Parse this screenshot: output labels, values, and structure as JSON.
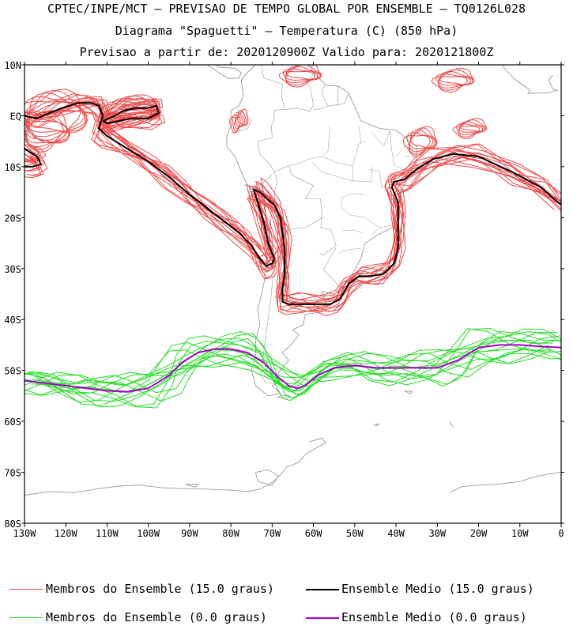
{
  "title": {
    "line1": "CPTEC/INPE/MCT — PREVISAO DE TEMPO GLOBAL POR ENSEMBLE — TQ0126L028",
    "line2": "Diagrama \"Spaguetti\" — Temperatura (C) (850 hPa)",
    "line3": "Previsao a partir de: 2020120900Z  Valido para: 2020121800Z"
  },
  "colors": {
    "members_15": "#f04848",
    "mean_15": "#000000",
    "members_0": "#22dd22",
    "mean_0": "#aa00cc",
    "coast": "#999999"
  },
  "chart_data": {
    "type": "line",
    "title": "Diagrama \"Spaguetti\" — Temperatura (C) (850 hPa)",
    "xlim": [
      -130,
      0
    ],
    "ylim": [
      -80,
      10
    ],
    "x_ticks": [
      -130,
      -120,
      -110,
      -100,
      -90,
      -80,
      -70,
      -60,
      -50,
      -40,
      -30,
      -20,
      -10,
      0
    ],
    "x_tick_labels": [
      "130W",
      "120W",
      "110W",
      "100W",
      "90W",
      "80W",
      "70W",
      "60W",
      "50W",
      "40W",
      "30W",
      "20W",
      "10W",
      "0"
    ],
    "y_ticks": [
      10,
      0,
      -10,
      -20,
      -30,
      -40,
      -50,
      -60,
      -70,
      -80
    ],
    "y_tick_labels": [
      "10N",
      "EQ",
      "10S",
      "20S",
      "30S",
      "40S",
      "50S",
      "60S",
      "70S",
      "80S"
    ],
    "series": [
      {
        "name": "Ensemble Medio (15.0 graus)",
        "role": "mean_15",
        "segments": [
          [
            [
              -130,
              0
            ],
            [
              -127,
              -0.5
            ],
            [
              -124,
              0.5
            ],
            [
              -121,
              1.5
            ],
            [
              -117,
              2.5
            ],
            [
              -114,
              2.5
            ],
            [
              -112,
              2
            ],
            [
              -111,
              0
            ],
            [
              -112,
              -2.5
            ],
            [
              -110,
              -4
            ],
            [
              -106,
              -6
            ],
            [
              -100,
              -9
            ],
            [
              -95,
              -12
            ],
            [
              -90,
              -15.5
            ],
            [
              -86,
              -18
            ],
            [
              -82,
              -20.5
            ],
            [
              -78,
              -23
            ],
            [
              -75,
              -25.5
            ],
            [
              -73,
              -28
            ],
            [
              -71.5,
              -29.5
            ],
            [
              -70,
              -29
            ],
            [
              -69.5,
              -28
            ],
            [
              -71,
              -25
            ],
            [
              -72,
              -21
            ],
            [
              -73.5,
              -17
            ],
            [
              -74.5,
              -14.5
            ],
            [
              -73,
              -15
            ],
            [
              -69.5,
              -17.5
            ],
            [
              -68,
              -20
            ],
            [
              -67,
              -26
            ],
            [
              -67,
              -31
            ],
            [
              -67.5,
              -34
            ],
            [
              -67.5,
              -36.5
            ],
            [
              -66,
              -37
            ],
            [
              -62,
              -37
            ],
            [
              -56,
              -37
            ],
            [
              -53.5,
              -36
            ],
            [
              -51.5,
              -33
            ],
            [
              -49,
              -31.5
            ],
            [
              -46,
              -31.5
            ],
            [
              -43,
              -31
            ],
            [
              -40.5,
              -29
            ],
            [
              -39.5,
              -26
            ],
            [
              -39.5,
              -21
            ],
            [
              -39.5,
              -17
            ],
            [
              -41,
              -14
            ],
            [
              -40.5,
              -13
            ],
            [
              -38,
              -12.5
            ],
            [
              -35,
              -10.5
            ],
            [
              -31,
              -8.5
            ],
            [
              -26,
              -7.5
            ],
            [
              -20,
              -8
            ],
            [
              -12,
              -11
            ],
            [
              -5,
              -14
            ],
            [
              0,
              -17.5
            ]
          ],
          [
            [
              -130,
              -6.5
            ],
            [
              -127,
              -8
            ],
            [
              -126,
              -9.5
            ],
            [
              -128,
              -10
            ],
            [
              -130,
              -10
            ]
          ],
          [
            [
              -111,
              -1
            ],
            [
              -108,
              0
            ],
            [
              -106,
              1
            ],
            [
              -103,
              1.5
            ],
            [
              -100,
              1.5
            ],
            [
              -98,
              2
            ],
            [
              -97.5,
              0.5
            ],
            [
              -100,
              -0.5
            ],
            [
              -104,
              -0.5
            ],
            [
              -107,
              -1
            ],
            [
              -110,
              -1.5
            ],
            [
              -111,
              -1
            ]
          ]
        ]
      },
      {
        "name": "Ensemble Medio (0.0 graus)",
        "role": "mean_0",
        "segments": [
          [
            [
              -130,
              -52
            ],
            [
              -125,
              -52.5
            ],
            [
              -120,
              -53
            ],
            [
              -115,
              -53.5
            ],
            [
              -110,
              -54
            ],
            [
              -105,
              -54.2
            ],
            [
              -100,
              -53.5
            ],
            [
              -95,
              -51
            ],
            [
              -92,
              -48.5
            ],
            [
              -88,
              -46.5
            ],
            [
              -84,
              -45.8
            ],
            [
              -80,
              -45.8
            ],
            [
              -76,
              -46.5
            ],
            [
              -72,
              -48.5
            ],
            [
              -69,
              -51
            ],
            [
              -66,
              -53
            ],
            [
              -64,
              -53.5
            ],
            [
              -62,
              -53
            ],
            [
              -59,
              -51
            ],
            [
              -55,
              -49.5
            ],
            [
              -50,
              -49
            ],
            [
              -45,
              -49.5
            ],
            [
              -40,
              -49.5
            ],
            [
              -35,
              -49.5
            ],
            [
              -30,
              -49.5
            ],
            [
              -25,
              -48
            ],
            [
              -20,
              -45.5
            ],
            [
              -15,
              -45
            ],
            [
              -10,
              -45
            ],
            [
              -5,
              -45.3
            ],
            [
              0,
              -45.5
            ]
          ]
        ]
      }
    ],
    "legend": [
      {
        "label": "Membros do Ensemble (15.0 graus)",
        "color": "#f04848"
      },
      {
        "label": "Ensemble Medio (15.0 graus)",
        "color": "#000000"
      },
      {
        "label": "Membros do Ensemble (0.0 graus)",
        "color": "#22dd22"
      },
      {
        "label": "Ensemble Medio (0.0 graus)",
        "color": "#aa00cc"
      }
    ],
    "member_count_approx": 14
  }
}
